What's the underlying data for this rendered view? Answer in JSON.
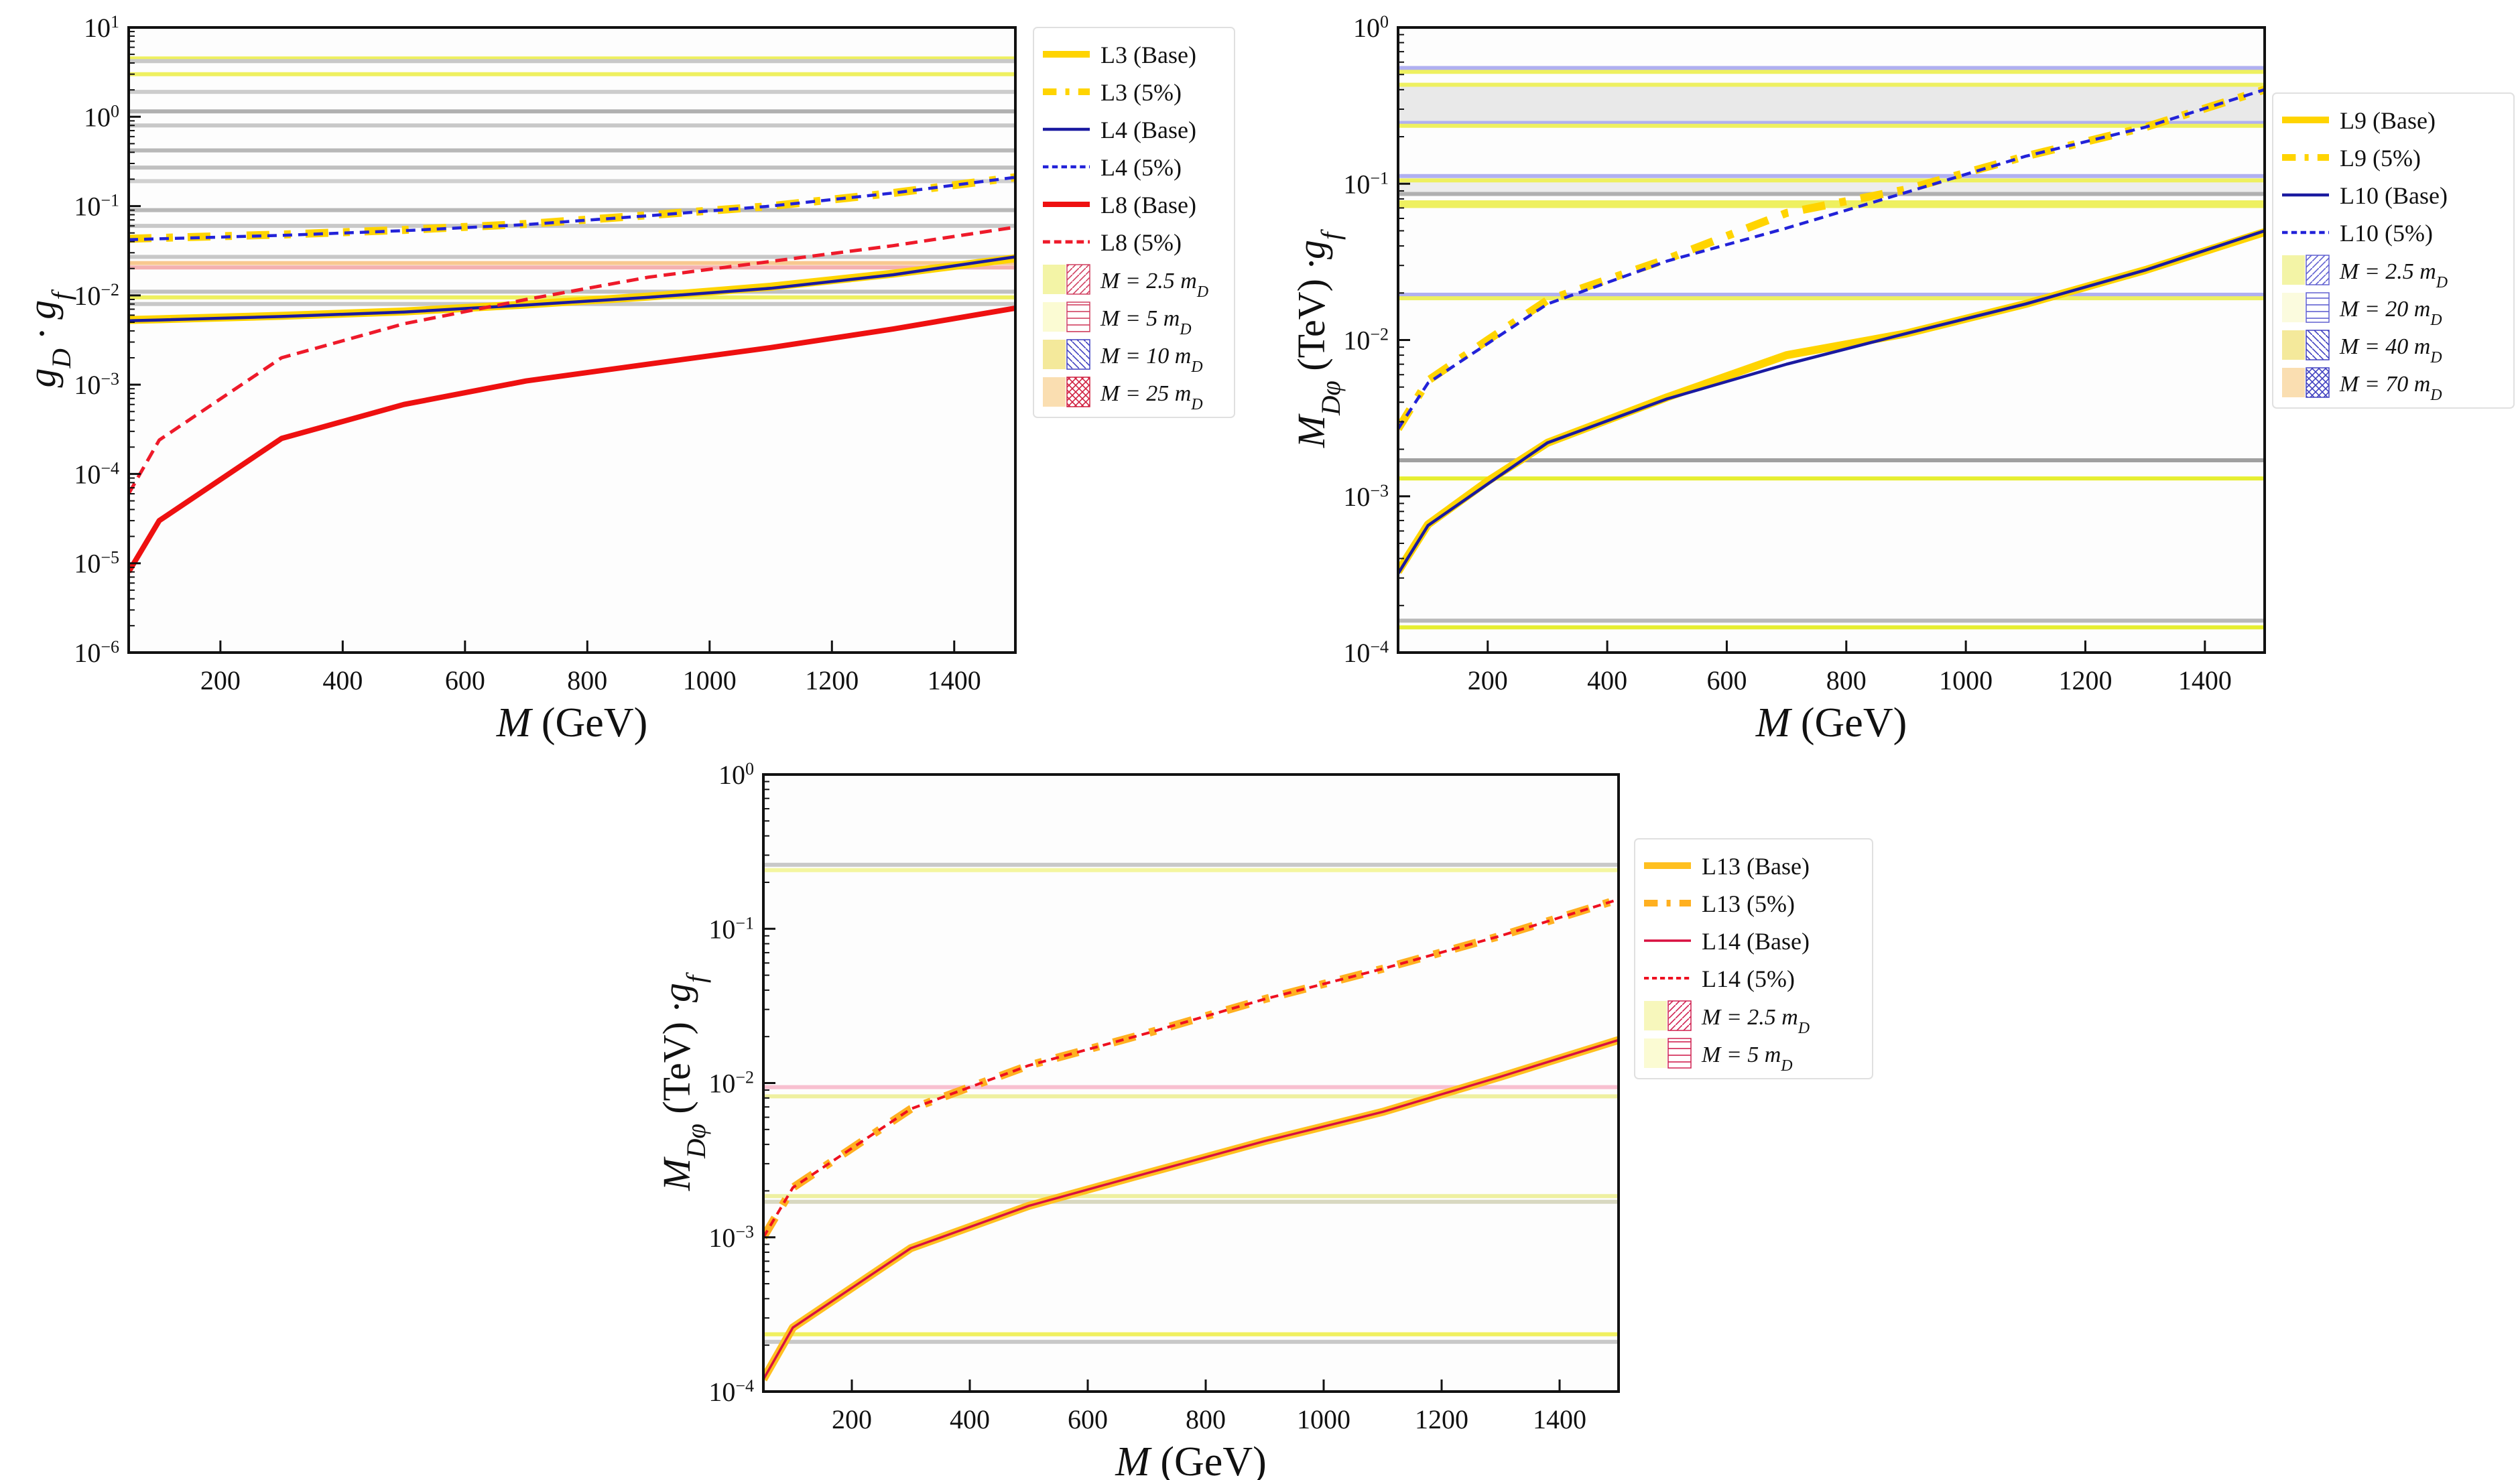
{
  "chart_data": [
    {
      "type": "line",
      "xlabel": "M (GeV)",
      "ylabel": "g_D · g_f",
      "xlim": [
        50,
        1500
      ],
      "ylim": [
        1e-06,
        10
      ],
      "yscale": "log",
      "xticks": [
        200,
        400,
        600,
        800,
        1000,
        1200,
        1400
      ],
      "yticks_exp": [
        -6,
        -5,
        -4,
        -3,
        -2,
        -1,
        0,
        1
      ],
      "grid": false,
      "legend_placement": "outside-right",
      "bands": [
        {
          "y": 4.5,
          "color": "#eef060"
        },
        {
          "y": 4.2,
          "color": "#c8c8c8"
        },
        {
          "y": 3.0,
          "color": "#eef060"
        },
        {
          "y": 1.9,
          "color": "#cccccc"
        },
        {
          "y": 1.15,
          "color": "#b0b0b0"
        },
        {
          "y": 0.8,
          "color": "#c8c8c8"
        },
        {
          "y": 0.42,
          "color": "#b8b8b8"
        },
        {
          "y": 0.27,
          "color": "#c0c0c0"
        },
        {
          "y": 0.19,
          "color": "#d0d0d0"
        },
        {
          "y": 0.09,
          "color": "#b8b8b8"
        },
        {
          "y": 0.06,
          "color": "#c8c8c8"
        },
        {
          "y": 0.027,
          "color": "#c8c8c8"
        },
        {
          "y": 0.023,
          "color": "#f8c890"
        },
        {
          "y": 0.0205,
          "color": "#f4b0b0"
        },
        {
          "y": 0.011,
          "color": "#c0c0c0"
        },
        {
          "y": 0.0095,
          "color": "#eef060"
        },
        {
          "y": 0.008,
          "color": "#c8c8c8"
        }
      ],
      "x": [
        50,
        100,
        300,
        500,
        700,
        900,
        1100,
        1300,
        1500
      ],
      "series": [
        {
          "name": "L3 (Base)",
          "style": "yellow-solid",
          "values": [
            0.0053,
            0.0054,
            0.0059,
            0.0066,
            0.0079,
            0.0097,
            0.0125,
            0.0175,
            0.026
          ]
        },
        {
          "name": "L3 (5%)",
          "style": "yellow-dashdot",
          "values": [
            0.043,
            0.044,
            0.048,
            0.054,
            0.063,
            0.079,
            0.1,
            0.14,
            0.21
          ]
        },
        {
          "name": "L4 (Base)",
          "style": "blue-solid",
          "values": [
            0.0052,
            0.0053,
            0.0058,
            0.0065,
            0.0078,
            0.0095,
            0.012,
            0.017,
            0.027
          ]
        },
        {
          "name": "L4 (5%)",
          "style": "blue-dashed",
          "values": [
            0.042,
            0.043,
            0.047,
            0.053,
            0.062,
            0.078,
            0.1,
            0.14,
            0.21
          ]
        },
        {
          "name": "L8 (Base)",
          "style": "red-solid",
          "values": [
            8e-06,
            3e-05,
            0.00025,
            0.0006,
            0.0011,
            0.0017,
            0.0026,
            0.0042,
            0.0072
          ]
        },
        {
          "name": "L8 (5%)",
          "style": "red-dashed",
          "values": [
            6e-05,
            0.00024,
            0.002,
            0.0048,
            0.009,
            0.016,
            0.024,
            0.036,
            0.058
          ]
        }
      ],
      "hatch_legend": [
        {
          "label": "M = 2.5 m_D",
          "fill": "#eef080",
          "hatch": "#d04060",
          "pattern": "diag"
        },
        {
          "label": "M = 5 m_D",
          "fill": "#fafac0",
          "hatch": "#d04060",
          "pattern": "horiz"
        },
        {
          "label": "M = 10 m_D",
          "fill": "#f0e070",
          "hatch": "#4040c0",
          "pattern": "diag2"
        },
        {
          "label": "M = 25 m_D",
          "fill": "#f8d090",
          "hatch": "#d02040",
          "pattern": "cross"
        }
      ]
    },
    {
      "type": "line",
      "xlabel": "M (GeV)",
      "ylabel": "M_{Dφ} (TeV) ·g_f",
      "xlim": [
        50,
        1500
      ],
      "ylim": [
        0.0001,
        1
      ],
      "yscale": "log",
      "xticks": [
        200,
        400,
        600,
        800,
        1000,
        1200,
        1400
      ],
      "yticks_exp": [
        -4,
        -3,
        -2,
        -1,
        0
      ],
      "grid": false,
      "legend_placement": "outside-right",
      "bands": [
        {
          "y": 0.55,
          "color": "#b0b0f0"
        },
        {
          "y": 0.52,
          "color": "#eef060"
        },
        {
          "y": 0.43,
          "color": "#eef060"
        },
        {
          "y": 0.245,
          "color": "#b0b0f0"
        },
        {
          "y": 0.235,
          "color": "#eef060"
        },
        {
          "y": 0.112,
          "color": "#b0b0f0"
        },
        {
          "y": 0.105,
          "color": "#eef060"
        },
        {
          "y": 0.086,
          "color": "#b0b0b0"
        },
        {
          "y": 0.076,
          "color": "#eef060"
        },
        {
          "y": 0.072,
          "color": "#eef060"
        },
        {
          "y": 0.0195,
          "color": "#b0b0f0"
        },
        {
          "y": 0.0185,
          "color": "#eef060"
        },
        {
          "y": 0.0017,
          "color": "#a0a0a0"
        },
        {
          "y": 0.0013,
          "color": "#e6ee30"
        },
        {
          "y": 0.00016,
          "color": "#b8b8b8"
        },
        {
          "y": 0.000145,
          "color": "#e6ee30"
        }
      ],
      "shaded_regions": [
        {
          "from": 0.245,
          "to": 0.43,
          "color": "#e4e4e4"
        },
        {
          "from": 0.086,
          "to": 0.105,
          "color": "#e8e8e8"
        }
      ],
      "x": [
        50,
        100,
        200,
        300,
        500,
        700,
        900,
        1100,
        1300,
        1500
      ],
      "series": [
        {
          "name": "L9 (Base)",
          "style": "yellow-solid",
          "values": [
            0.00033,
            0.00066,
            0.00125,
            0.0022,
            0.0043,
            0.008,
            0.011,
            0.017,
            0.028,
            0.049
          ]
        },
        {
          "name": "L9 (5%)",
          "style": "yellow-dashdot",
          "values": [
            0.0027,
            0.0055,
            0.01,
            0.018,
            0.033,
            0.065,
            0.092,
            0.15,
            0.23,
            0.4
          ]
        },
        {
          "name": "L10 (Base)",
          "style": "blue-solid",
          "values": [
            0.00032,
            0.00065,
            0.0012,
            0.0022,
            0.0042,
            0.007,
            0.011,
            0.017,
            0.028,
            0.05
          ]
        },
        {
          "name": "L10 (5%)",
          "style": "blue-dashed",
          "values": [
            0.0027,
            0.0053,
            0.0095,
            0.017,
            0.032,
            0.052,
            0.088,
            0.15,
            0.23,
            0.4
          ]
        }
      ],
      "hatch_legend": [
        {
          "label": "M = 2.5 m_D",
          "fill": "#eef080",
          "hatch": "#6060d0",
          "pattern": "diag"
        },
        {
          "label": "M = 20 m_D",
          "fill": "#fafad0",
          "hatch": "#6060d0",
          "pattern": "horiz"
        },
        {
          "label": "M = 40 m_D",
          "fill": "#f0e070",
          "hatch": "#4040c0",
          "pattern": "diag2"
        },
        {
          "label": "M = 70 m_D",
          "fill": "#f8d090",
          "hatch": "#4040c0",
          "pattern": "cross"
        }
      ]
    },
    {
      "type": "line",
      "xlabel": "M (GeV)",
      "ylabel": "M_{Dφ} (TeV) ·g_f",
      "xlim": [
        50,
        1500
      ],
      "ylim": [
        0.0001,
        1
      ],
      "yscale": "log",
      "xticks": [
        200,
        400,
        600,
        800,
        1000,
        1200,
        1400
      ],
      "yticks_exp": [
        -4,
        -3,
        -2,
        -1,
        0
      ],
      "grid": false,
      "legend_placement": "outside-right",
      "bands": [
        {
          "y": 0.26,
          "color": "#c8c8c8"
        },
        {
          "y": 0.24,
          "color": "#f4f6a0"
        },
        {
          "y": 0.0094,
          "color": "#f8c0d0"
        },
        {
          "y": 0.0082,
          "color": "#eef0a0"
        },
        {
          "y": 0.00185,
          "color": "#eef0a0"
        },
        {
          "y": 0.0017,
          "color": "#d8d8c0"
        },
        {
          "y": 0.000235,
          "color": "#f0f060"
        },
        {
          "y": 0.00021,
          "color": "#c8c8c8"
        }
      ],
      "x": [
        50,
        100,
        300,
        500,
        700,
        900,
        1100,
        1300,
        1500
      ],
      "series": [
        {
          "name": "L13 (Base)",
          "style": "orange-solid",
          "values": [
            0.00012,
            0.00026,
            0.00085,
            0.0016,
            0.0026,
            0.0042,
            0.0065,
            0.011,
            0.019
          ]
        },
        {
          "name": "L13 (5%)",
          "style": "orange-dashdot",
          "values": [
            0.001,
            0.0021,
            0.0068,
            0.013,
            0.021,
            0.035,
            0.055,
            0.09,
            0.155
          ]
        },
        {
          "name": "L14 (Base)",
          "style": "crimson-solid",
          "values": [
            0.00012,
            0.00026,
            0.00085,
            0.0016,
            0.0026,
            0.0042,
            0.0065,
            0.011,
            0.019
          ]
        },
        {
          "name": "L14 (5%)",
          "style": "crimson-dashed",
          "values": [
            0.001,
            0.0021,
            0.0068,
            0.013,
            0.021,
            0.035,
            0.055,
            0.09,
            0.155
          ]
        }
      ],
      "hatch_legend": [
        {
          "label": "M = 2.5 m_D",
          "fill": "#f4f4a0",
          "hatch": "#d02050",
          "pattern": "diag"
        },
        {
          "label": "M = 5 m_D",
          "fill": "#fafac0",
          "hatch": "#d02050",
          "pattern": "horiz"
        }
      ]
    }
  ]
}
